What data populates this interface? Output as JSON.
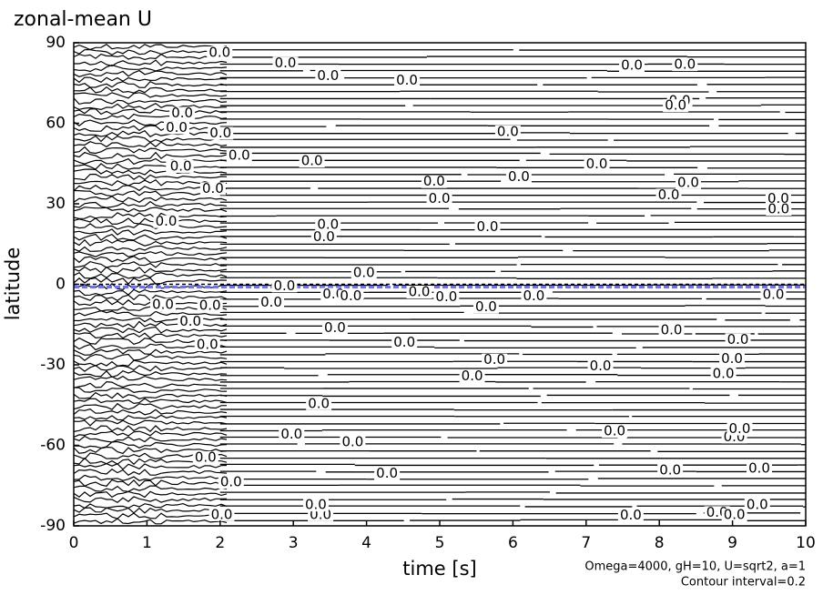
{
  "chart_data": {
    "type": "contour",
    "title": "zonal-mean U",
    "x_label": "time [s]",
    "y_label": "latitude",
    "xlim": [
      0,
      10
    ],
    "xticks": [
      0,
      1,
      2,
      3,
      4,
      5,
      6,
      7,
      8,
      9,
      10
    ],
    "ylim": [
      -90,
      90
    ],
    "yticks": [
      -90,
      -60,
      -30,
      0,
      30,
      60,
      90
    ],
    "contour_label": "0.0",
    "zero_line_color": "#7070ff",
    "annotations": [
      "Omega=4000, gH=10, U=sqrt2, a=1",
      "Contour interval=0.2"
    ]
  }
}
